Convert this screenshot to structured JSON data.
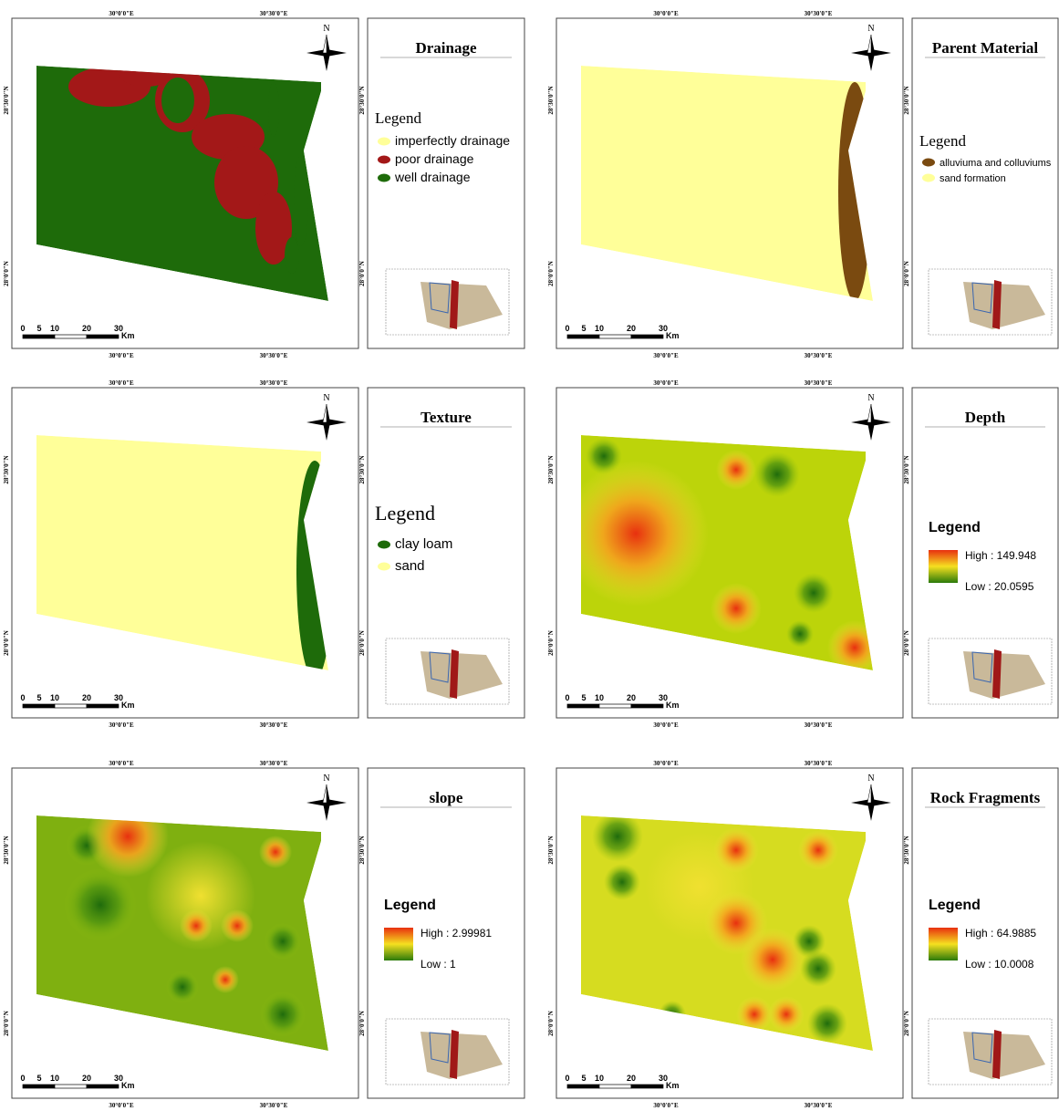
{
  "graticule": {
    "lon": [
      "30°0'0\"E",
      "30°30'0\"E"
    ],
    "lat": [
      "28°30'0\"N",
      "28°0'0\"N"
    ]
  },
  "north": "N",
  "scale_bar": {
    "ticks": [
      "0",
      "5",
      "10",
      "20",
      "30"
    ],
    "unit": "Km"
  },
  "panels": [
    {
      "title": "Drainage",
      "legend_title": "Legend",
      "legend_items": [
        {
          "label": "imperfectly drainage",
          "color": "#ffff99"
        },
        {
          "label": "poor drainage",
          "color": "#a31818"
        },
        {
          "label": "well drainage",
          "color": "#1e6b0a"
        }
      ]
    },
    {
      "title": "Parent Material",
      "legend_title": "Legend",
      "legend_items": [
        {
          "label": "alluviuma and colluviums",
          "color": "#7a4a10"
        },
        {
          "label": "sand formation",
          "color": "#ffff99"
        }
      ]
    },
    {
      "title": "Texture",
      "legend_title": "Legend",
      "legend_items": [
        {
          "label": "clay loam",
          "color": "#1e6b0a"
        },
        {
          "label": "sand",
          "color": "#ffff99"
        }
      ]
    },
    {
      "title": "Depth",
      "legend_title": "Legend",
      "high": "High : 149.948",
      "low": "Low : 20.0595"
    },
    {
      "title": "slope",
      "legend_title": "Legend",
      "high": "High : 2.99981",
      "low": "Low : 1"
    },
    {
      "title": "Rock Fragments",
      "legend_title": "Legend",
      "high": "High : 64.9885",
      "low": "Low : 10.0008"
    }
  ]
}
